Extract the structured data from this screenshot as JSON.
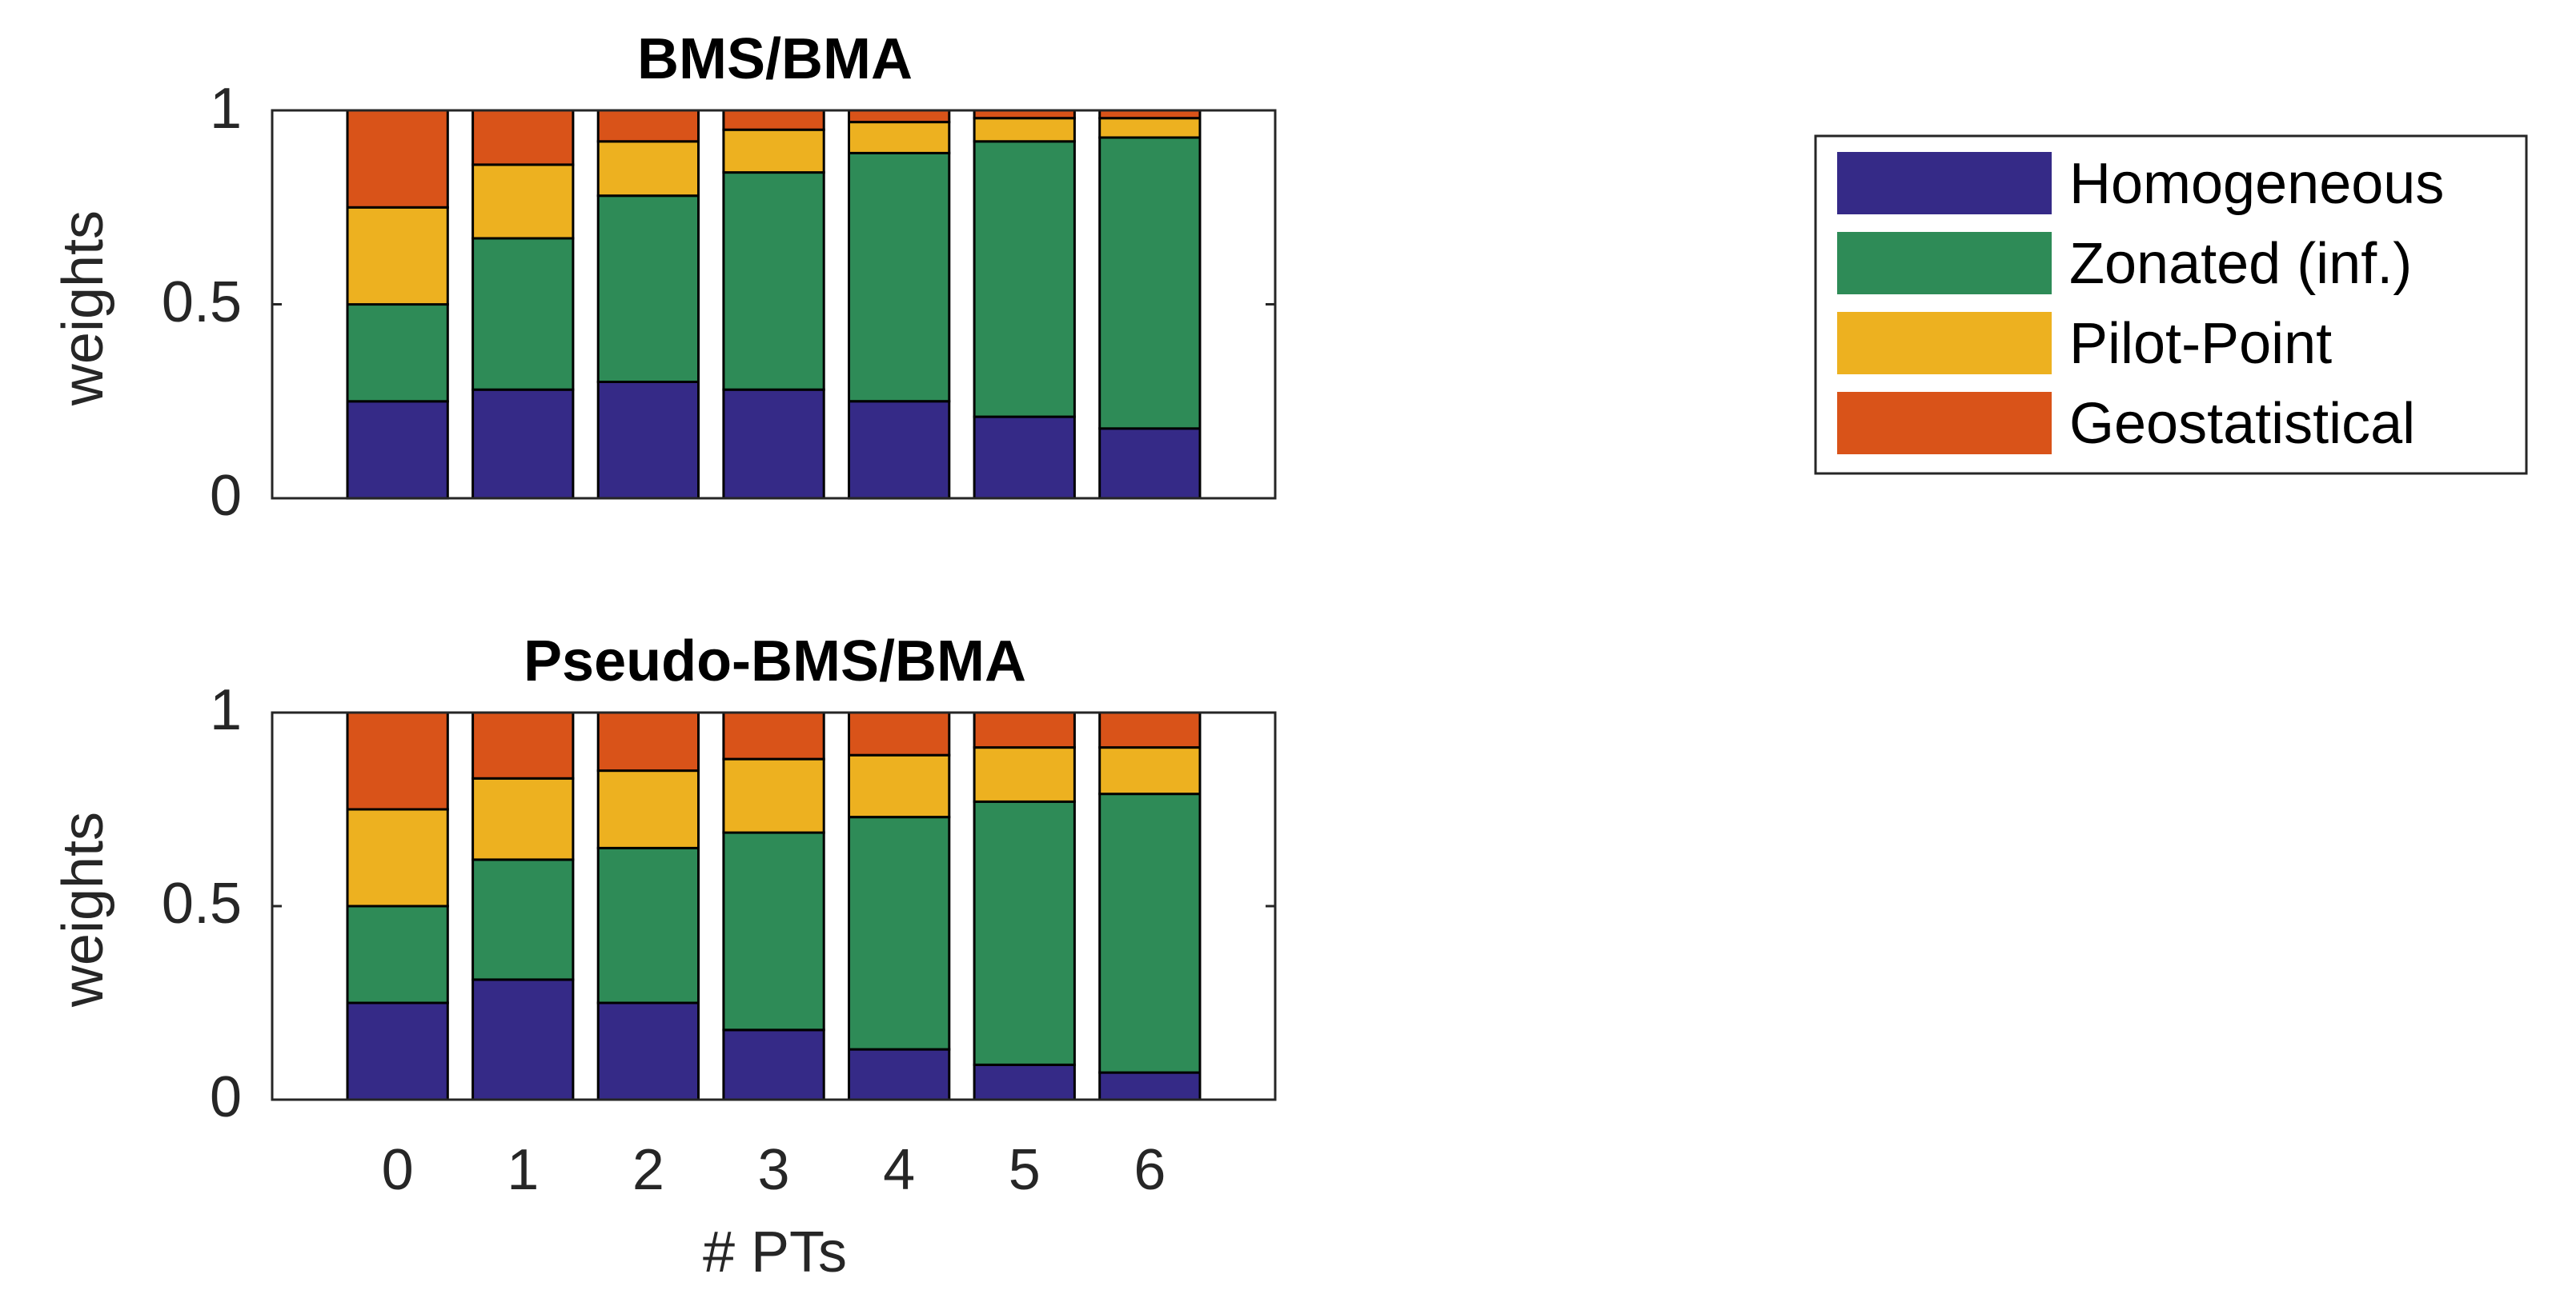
{
  "colors": {
    "Homogeneous": "#352a87",
    "Zonated (inf.)": "#2e8b57",
    "Pilot-Point": "#edb120",
    "Geostatistical": "#d95319"
  },
  "legend": {
    "entries": [
      "Homogeneous",
      "Zonated (inf.)",
      "Pilot-Point",
      "Geostatistical"
    ]
  },
  "chart_data": [
    {
      "type": "bar",
      "stacked": true,
      "title": "BMS/BMA",
      "xlabel": "",
      "ylabel": "weights",
      "ylim": [
        0,
        1
      ],
      "yticks": [
        "0",
        "0.5",
        "1"
      ],
      "categories": [
        "0",
        "1",
        "2",
        "3",
        "4",
        "5",
        "6"
      ],
      "series": [
        {
          "name": "Homogeneous",
          "values": [
            0.25,
            0.28,
            0.3,
            0.28,
            0.25,
            0.21,
            0.18
          ]
        },
        {
          "name": "Zonated (inf.)",
          "values": [
            0.25,
            0.39,
            0.48,
            0.56,
            0.64,
            0.71,
            0.75
          ]
        },
        {
          "name": "Pilot-Point",
          "values": [
            0.25,
            0.19,
            0.14,
            0.11,
            0.08,
            0.06,
            0.05
          ]
        },
        {
          "name": "Geostatistical",
          "values": [
            0.25,
            0.14,
            0.08,
            0.05,
            0.03,
            0.02,
            0.02
          ]
        }
      ]
    },
    {
      "type": "bar",
      "stacked": true,
      "title": "Pseudo-BMS/BMA",
      "xlabel": "# PTs",
      "ylabel": "weights",
      "ylim": [
        0,
        1
      ],
      "yticks": [
        "0",
        "0.5",
        "1"
      ],
      "categories": [
        "0",
        "1",
        "2",
        "3",
        "4",
        "5",
        "6"
      ],
      "series": [
        {
          "name": "Homogeneous",
          "values": [
            0.25,
            0.31,
            0.25,
            0.18,
            0.13,
            0.09,
            0.07
          ]
        },
        {
          "name": "Zonated (inf.)",
          "values": [
            0.25,
            0.31,
            0.4,
            0.51,
            0.6,
            0.68,
            0.72
          ]
        },
        {
          "name": "Pilot-Point",
          "values": [
            0.25,
            0.21,
            0.2,
            0.19,
            0.16,
            0.14,
            0.12
          ]
        },
        {
          "name": "Geostatistical",
          "values": [
            0.25,
            0.17,
            0.15,
            0.12,
            0.11,
            0.09,
            0.09
          ]
        }
      ]
    }
  ]
}
